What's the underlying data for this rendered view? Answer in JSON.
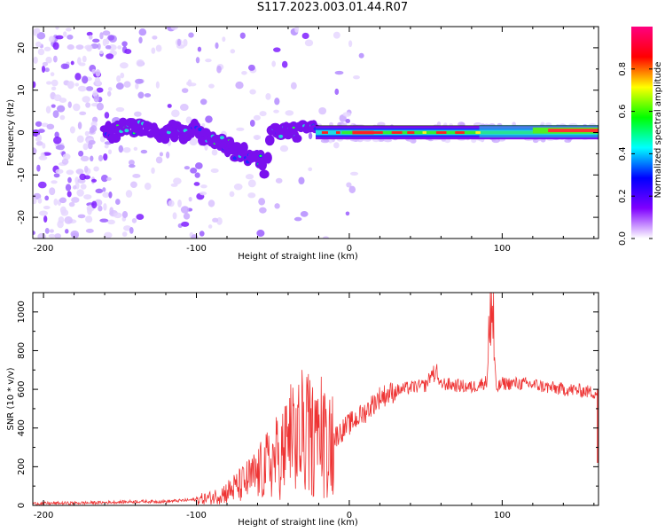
{
  "title": "S117.2023.003.01.44.R07",
  "chart_data": [
    {
      "type": "heatmap",
      "xlabel": "Height of straight line (km)",
      "ylabel": "Frequency (Hz)",
      "xlim": [
        -207,
        163
      ],
      "ylim": [
        -25,
        25
      ],
      "xticks": [
        -200,
        -100,
        0,
        100
      ],
      "yticks": [
        -20,
        -10,
        0,
        10,
        20
      ],
      "colorbar": {
        "label": "Normalized spectral amplitude",
        "range": [
          0,
          1
        ],
        "ticks": [
          0.0,
          0.2,
          0.4,
          0.6,
          0.8
        ],
        "tick_labels": [
          "0.0",
          "0.2",
          "0.4",
          "0.6",
          "0.8"
        ],
        "colormap": [
          "#ffffff",
          "#7f00ff",
          "#0000ff",
          "#00ffff",
          "#00ff00",
          "#ffff00",
          "#ff0000",
          "#ff0080"
        ]
      },
      "signal_track": [
        {
          "x": -160,
          "f": 0
        },
        {
          "x": -140,
          "f": 1.5
        },
        {
          "x": -125,
          "f": 0
        },
        {
          "x": -110,
          "f": 0.5
        },
        {
          "x": -95,
          "f": 0
        },
        {
          "x": -85,
          "f": -2
        },
        {
          "x": -75,
          "f": -4
        },
        {
          "x": -65,
          "f": -6
        },
        {
          "x": -55,
          "f": -8
        },
        {
          "x": -50,
          "f": 3
        },
        {
          "x": -45,
          "f": 1
        },
        {
          "x": -35,
          "f": 0.5
        },
        {
          "x": -25,
          "f": 0
        },
        {
          "x": 0,
          "f": 0
        },
        {
          "x": 50,
          "f": -0.5
        },
        {
          "x": 100,
          "f": 0
        },
        {
          "x": 163,
          "f": 0.5
        }
      ]
    },
    {
      "type": "line",
      "xlabel": "Height of straight line (km)",
      "ylabel": "SNR (10 * v/v)",
      "xlim": [
        -207,
        163
      ],
      "ylim": [
        0,
        1100
      ],
      "xticks": [
        -200,
        -100,
        0,
        100
      ],
      "yticks": [
        0,
        200,
        400,
        600,
        800,
        1000
      ],
      "color": "#ee3333",
      "series": [
        {
          "x": [
            -207,
            -180,
            -160,
            -140,
            -120,
            -100,
            -90,
            -80,
            -70,
            -60,
            -50,
            -40,
            -30,
            -20,
            -10,
            0,
            10,
            20,
            30,
            40,
            50,
            55,
            60,
            70,
            80,
            90,
            93,
            96,
            100,
            110,
            120,
            130,
            140,
            150,
            163
          ],
          "values": [
            10,
            12,
            15,
            20,
            20,
            30,
            40,
            70,
            110,
            160,
            230,
            300,
            380,
            320,
            350,
            420,
            480,
            560,
            590,
            610,
            620,
            700,
            630,
            620,
            610,
            640,
            1100,
            600,
            630,
            630,
            625,
            610,
            600,
            595,
            580
          ]
        }
      ]
    }
  ]
}
